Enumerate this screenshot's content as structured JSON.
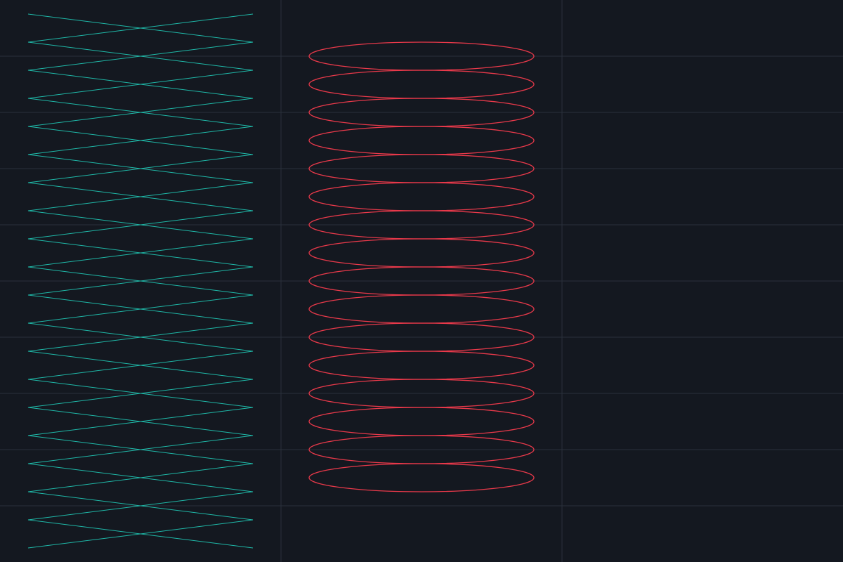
{
  "colors": {
    "background": "#141820",
    "grid": "#2a303b",
    "zigzag_stroke": "#1fb8a8",
    "ellipse_stroke": "#e8394a"
  },
  "grid": {
    "visible": true
  },
  "zigzag_pattern": {
    "name": "crossing-zigzag-lines",
    "line_count": 2,
    "vertex_count": 20
  },
  "ellipse_stack": {
    "name": "stacked-ellipses",
    "count": 16
  }
}
